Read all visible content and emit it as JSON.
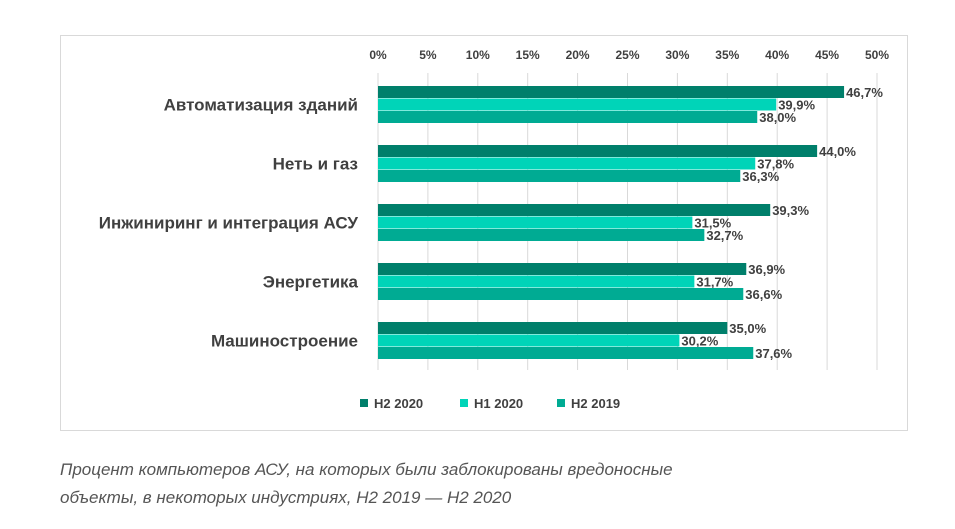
{
  "colors": {
    "H2 2020": "#007f6b",
    "H1 2020": "#00d4b8",
    "H2 2019": "#00ab93",
    "grid": "#d9d9d9",
    "text": "#404040"
  },
  "chart_data": {
    "type": "bar",
    "orientation": "horizontal",
    "categories": [
      "Автоматизация зданий",
      "Неть и газ",
      "Инжиниринг и интеграция АСУ",
      "Энергетика",
      "Машиностроение"
    ],
    "series": [
      {
        "name": "H2 2020",
        "values": [
          46.7,
          44.0,
          39.3,
          36.9,
          35.0
        ],
        "labels": [
          "46,7%",
          "44,0%",
          "39,3%",
          "36,9%",
          "35,0%"
        ]
      },
      {
        "name": "H1 2020",
        "values": [
          39.9,
          37.8,
          31.5,
          31.7,
          30.2
        ],
        "labels": [
          "39,9%",
          "37,8%",
          "31,5%",
          "31,7%",
          "30,2%"
        ]
      },
      {
        "name": "H2 2019",
        "values": [
          38.0,
          36.3,
          32.7,
          36.6,
          37.6
        ],
        "labels": [
          "38,0%",
          "36,3%",
          "32,7%",
          "36,6%",
          "37,6%"
        ]
      }
    ],
    "xlim": [
      0,
      50
    ],
    "x_ticks": [
      "0%",
      "5%",
      "10%",
      "15%",
      "20%",
      "25%",
      "30%",
      "35%",
      "40%",
      "45%",
      "50%"
    ],
    "x_axis_position": "top",
    "grid": true,
    "legend_position": "bottom"
  },
  "caption": {
    "line1": "Процент компьютеров АСУ, на которых были заблокированы вредоносные",
    "line2": "объекты, в некоторых индустриях, H2 2019 — H2 2020"
  }
}
